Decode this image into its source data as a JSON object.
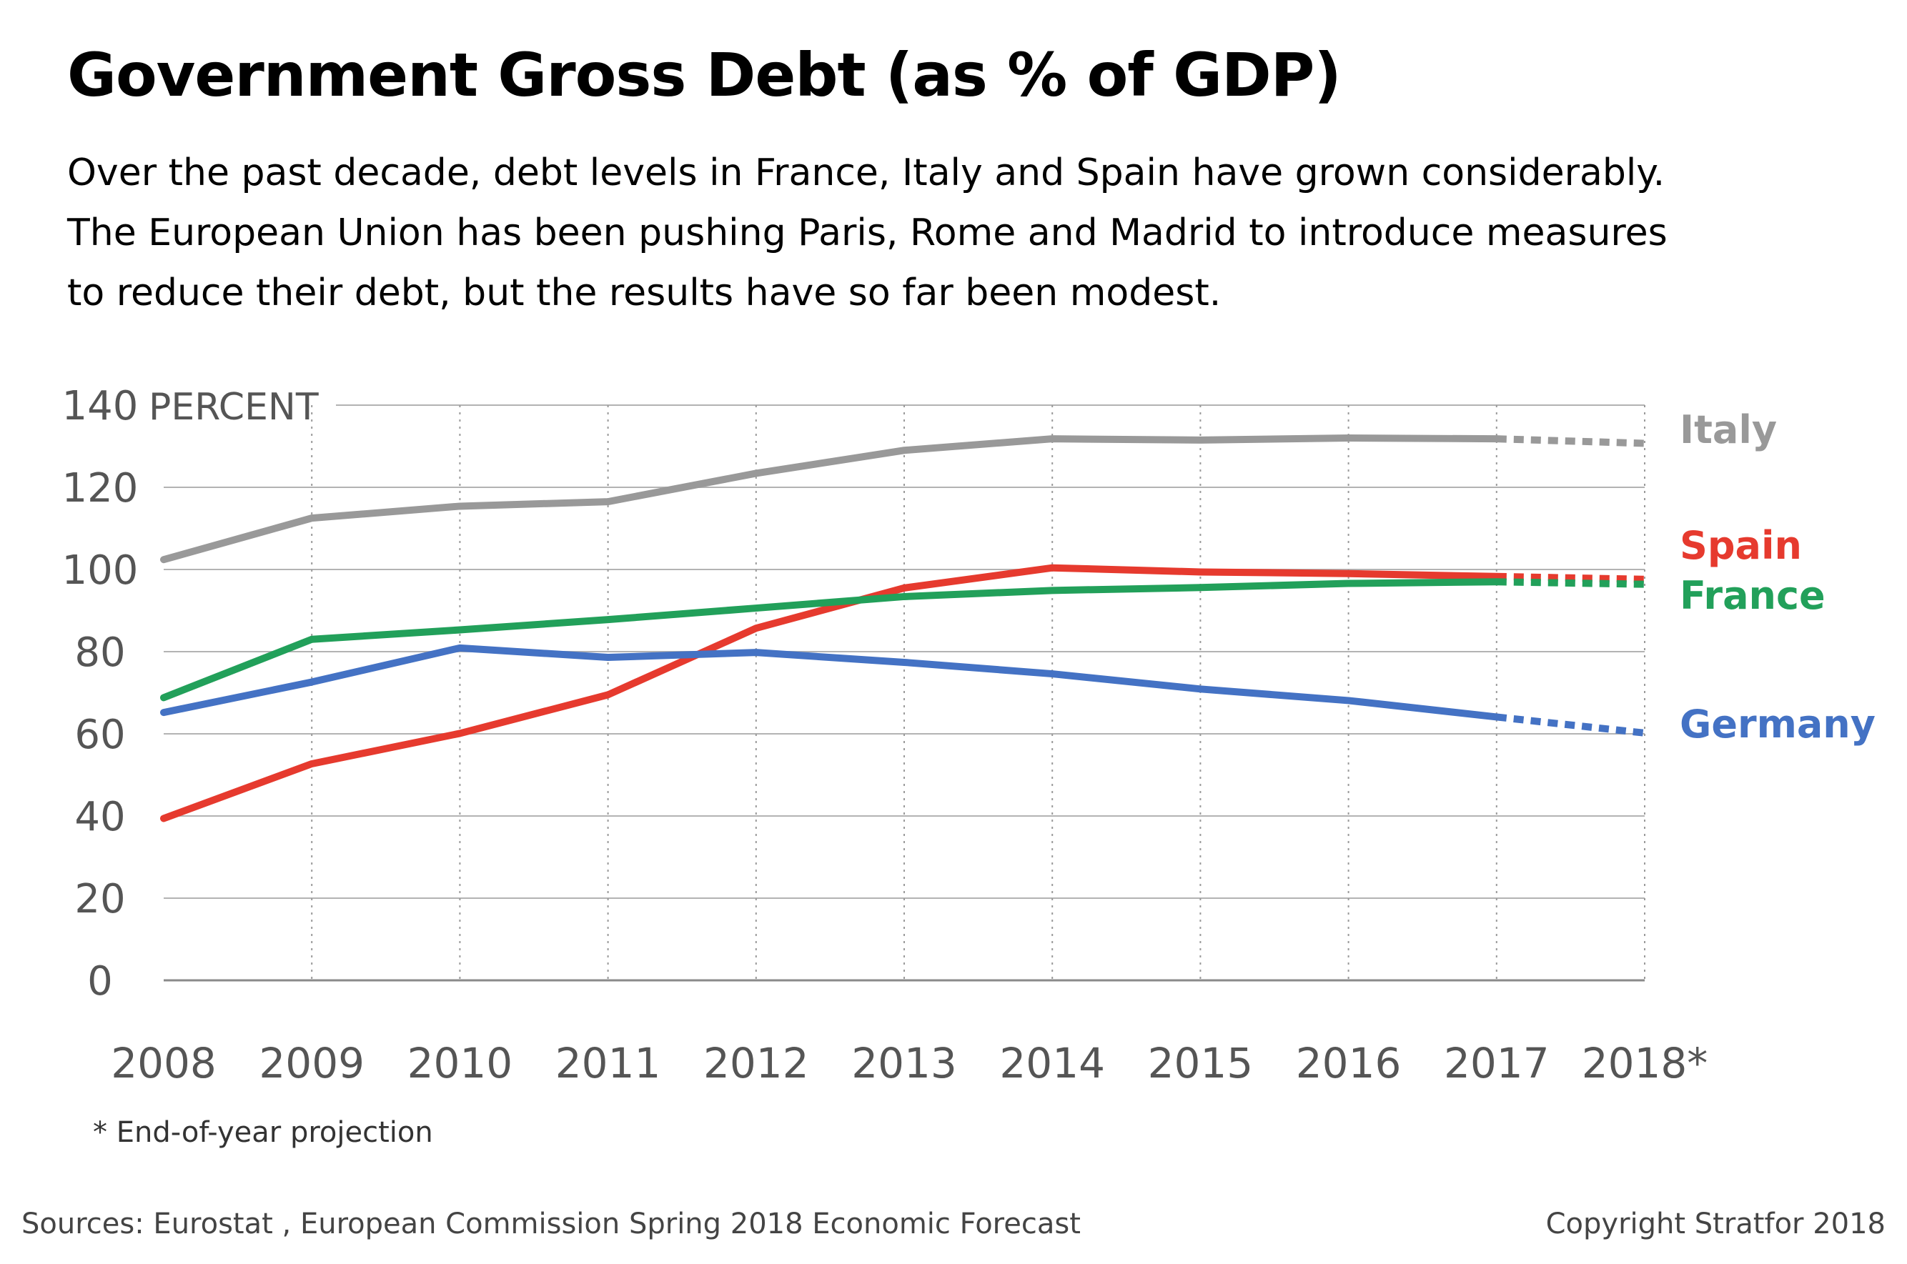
{
  "title": "Government Gross Debt (as % of GDP)",
  "subtitle_lines": [
    "Over the past decade, debt levels in France, Italy and Spain have grown considerably.",
    "The European Union has been pushing Paris, Rome and Madrid to introduce measures",
    "to reduce their debt, but the results have so far been modest."
  ],
  "note": "* End-of-year projection",
  "sources": "Sources: Eurostat , European Commission Spring 2018 Economic Forecast",
  "copyright": "Copyright Stratfor 2018",
  "chart_data": {
    "type": "line",
    "x": [
      "2008",
      "2009",
      "2010",
      "2011",
      "2012",
      "2013",
      "2014",
      "2015",
      "2016",
      "2017",
      "2018*"
    ],
    "ylabel": "PERCENT",
    "ylim": [
      0,
      140
    ],
    "yticks": [
      0,
      20,
      40,
      60,
      80,
      100,
      120,
      140
    ],
    "grid": true,
    "projection_from_index": 9,
    "legend": "direct labels at right end of lines",
    "series": [
      {
        "name": "Italy",
        "color": "#999999",
        "values": [
          102.4,
          112.5,
          115.4,
          116.5,
          123.4,
          129.0,
          131.8,
          131.5,
          132.0,
          131.8,
          130.7
        ]
      },
      {
        "name": "Spain",
        "color": "#e63a2e",
        "values": [
          39.4,
          52.7,
          60.1,
          69.5,
          85.7,
          95.5,
          100.4,
          99.4,
          99.0,
          98.3,
          97.6
        ]
      },
      {
        "name": "France",
        "color": "#22a05a",
        "values": [
          68.8,
          83.0,
          85.3,
          87.8,
          90.6,
          93.4,
          94.9,
          95.6,
          96.6,
          97.0,
          96.4
        ]
      },
      {
        "name": "Germany",
        "color": "#4472c4",
        "values": [
          65.2,
          72.6,
          80.9,
          78.6,
          79.8,
          77.4,
          74.6,
          70.9,
          68.1,
          64.1,
          60.2
        ]
      }
    ]
  }
}
